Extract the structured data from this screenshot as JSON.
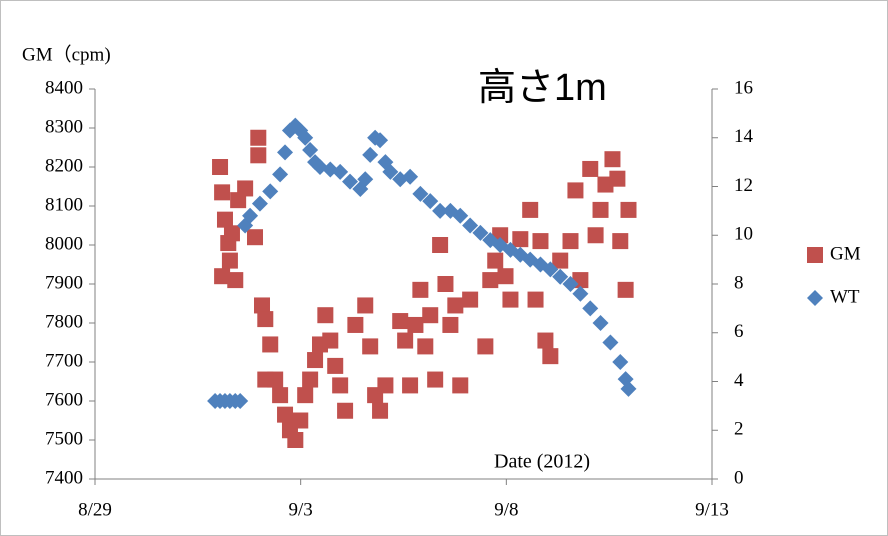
{
  "chart_data": {
    "type": "scatter",
    "title": "GM（cpm)",
    "annotation": "高さ1m",
    "x_label": "Date (2012)",
    "legend": "right",
    "grid": false,
    "xlim": [
      41150,
      41165
    ],
    "xticks": [
      {
        "value": 41150,
        "label": "8/29"
      },
      {
        "value": 41155,
        "label": "9/3"
      },
      {
        "value": 41160,
        "label": "9/8"
      },
      {
        "value": 41165,
        "label": "9/13"
      }
    ],
    "ylim": [
      7400,
      8400
    ],
    "yticks": [
      7400,
      7500,
      7600,
      7700,
      7800,
      7900,
      8000,
      8100,
      8200,
      8300,
      8400
    ],
    "y2lim": [
      0,
      16
    ],
    "y2ticks": [
      0,
      2,
      4,
      6,
      8,
      10,
      12,
      14,
      16
    ],
    "series": [
      {
        "name": "GM",
        "color": "#c0504d",
        "marker": "square",
        "x": [
          41153.04,
          41153.09,
          41153.16,
          41153.24,
          41153.28,
          41153.41,
          41153.09,
          41153.33,
          41153.48,
          41153.65,
          41153.89,
          41153.97,
          41153.97,
          41154.06,
          41154.14,
          41154.26,
          41154.38,
          41154.14,
          41154.5,
          41154.62,
          41154.74,
          41154.87,
          41154.99,
          41155.11,
          41155.23,
          41155.35,
          41155.47,
          41155.6,
          41155.72,
          41155.84,
          41155.96,
          41156.08,
          41156.33,
          41156.57,
          41156.69,
          41156.81,
          41156.93,
          41157.06,
          41157.42,
          41157.54,
          41157.66,
          41157.79,
          41157.91,
          41158.03,
          41158.15,
          41158.27,
          41158.39,
          41158.52,
          41158.64,
          41158.76,
          41158.88,
          41159.12,
          41159.49,
          41159.61,
          41159.73,
          41159.85,
          41159.98,
          41160.1,
          41160.34,
          41160.58,
          41160.71,
          41160.83,
          41160.95,
          41161.07,
          41161.31,
          41161.56,
          41161.68,
          41161.8,
          41162.04,
          41162.17,
          41162.29,
          41162.41,
          41162.58,
          41162.7,
          41162.77,
          41162.9,
          41162.97
        ],
        "values": [
          8200,
          8135,
          8065,
          8005,
          7960,
          7910,
          7920,
          8030,
          8115,
          8145,
          8020,
          8275,
          8230,
          7845,
          7810,
          7745,
          7655,
          7655,
          7615,
          7565,
          7525,
          7500,
          7550,
          7615,
          7655,
          7705,
          7745,
          7820,
          7755,
          7690,
          7640,
          7575,
          7795,
          7845,
          7740,
          7615,
          7575,
          7640,
          7805,
          7755,
          7640,
          7795,
          7885,
          7740,
          7820,
          7655,
          8000,
          7900,
          7795,
          7845,
          7640,
          7860,
          7740,
          7910,
          7960,
          8025,
          7920,
          7860,
          8015,
          8090,
          7860,
          8010,
          7755,
          7715,
          7960,
          8010,
          8140,
          7910,
          8195,
          8025,
          8090,
          8155,
          8220,
          8170,
          8010,
          7885,
          8090
        ]
      },
      {
        "name": "WT",
        "color": "#4f81bd",
        "marker": "diamond",
        "axis": "y2",
        "x": [
          41152.92,
          41153.04,
          41153.16,
          41153.28,
          41153.41,
          41153.53,
          41153.65,
          41153.77,
          41154.01,
          41154.26,
          41154.5,
          41154.62,
          41154.74,
          41154.87,
          41154.99,
          41155.11,
          41155.23,
          41155.35,
          41155.47,
          41155.72,
          41155.96,
          41156.2,
          41156.45,
          41156.57,
          41156.69,
          41156.81,
          41156.93,
          41157.06,
          41157.18,
          41157.42,
          41157.66,
          41157.91,
          41158.15,
          41158.39,
          41158.64,
          41158.88,
          41159.12,
          41159.37,
          41159.61,
          41159.85,
          41160.1,
          41160.34,
          41160.58,
          41160.83,
          41161.07,
          41161.31,
          41161.56,
          41161.8,
          41162.04,
          41162.29,
          41162.53,
          41162.77,
          41162.9,
          41162.97
        ],
        "values": [
          3.2,
          3.2,
          3.2,
          3.2,
          3.2,
          3.2,
          10.4,
          10.8,
          11.3,
          11.8,
          12.5,
          13.4,
          14.3,
          14.5,
          14.3,
          14.0,
          13.5,
          13.0,
          12.8,
          12.7,
          12.6,
          12.2,
          11.9,
          12.3,
          13.3,
          14.0,
          13.9,
          13.0,
          12.6,
          12.3,
          12.4,
          11.7,
          11.4,
          11.0,
          11.0,
          10.8,
          10.4,
          10.1,
          9.8,
          9.6,
          9.4,
          9.2,
          9.0,
          8.8,
          8.6,
          8.3,
          8.0,
          7.6,
          7.0,
          6.4,
          5.6,
          4.8,
          4.1,
          3.7
        ]
      }
    ]
  }
}
